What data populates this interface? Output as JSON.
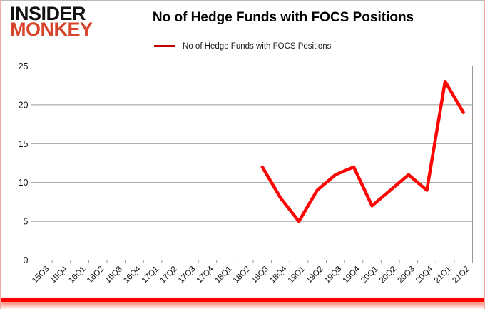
{
  "page": {
    "logo": {
      "line1": "INSIDER",
      "line2": "MONKEY"
    },
    "title": "No of Hedge Funds with FOCS Positions",
    "legend": {
      "label": "No of Hedge Funds with FOCS Positions"
    }
  },
  "colors": {
    "series_line": "#fe0505",
    "legend_marker": "#c00000",
    "logo_accent": "#d8432c",
    "bottom_bar": "#ff0000",
    "grid": "#969696",
    "axis_text": "#111111"
  },
  "chart_data": {
    "type": "line",
    "title": "No of Hedge Funds with FOCS Positions",
    "xlabel": "",
    "ylabel": "",
    "categories": [
      "15Q3",
      "15Q4",
      "16Q1",
      "16Q2",
      "16Q3",
      "16Q4",
      "17Q1",
      "17Q2",
      "17Q3",
      "17Q4",
      "18Q1",
      "18Q2",
      "18Q3",
      "18Q4",
      "19Q1",
      "19Q2",
      "19Q3",
      "19Q4",
      "20Q1",
      "20Q2",
      "20Q3",
      "20Q4",
      "21Q1",
      "21Q2"
    ],
    "series": [
      {
        "name": "No of Hedge Funds with FOCS Positions",
        "values": [
          null,
          null,
          null,
          null,
          null,
          null,
          null,
          null,
          null,
          null,
          null,
          null,
          12,
          8,
          5,
          9,
          11,
          12,
          7,
          9,
          11,
          9,
          23,
          19
        ]
      }
    ],
    "ylim": [
      0,
      25
    ],
    "y_ticks": [
      0,
      5,
      10,
      15,
      20,
      25
    ],
    "grid": "horizontal",
    "legend_position": "top-center",
    "x_tick_rotation": -45
  }
}
